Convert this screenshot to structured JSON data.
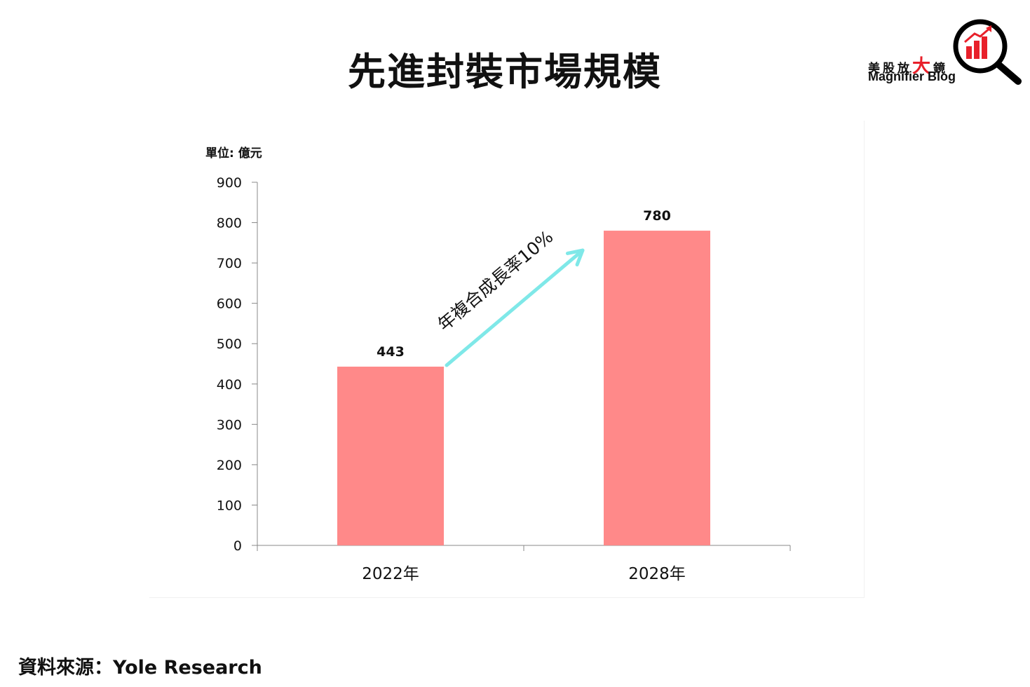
{
  "title": "先進封裝市場規模",
  "logo": {
    "chars": [
      "美",
      "股",
      "放",
      "大",
      "鏡"
    ],
    "subtitle": "Magnifier Blog",
    "icon": "magnifier-bar-chart-icon",
    "accent": "#e8202a"
  },
  "source": "資料來源：Yole Research",
  "chart_data": {
    "type": "bar",
    "unit_label": "單位: 億元",
    "categories": [
      "2022年",
      "2028年"
    ],
    "values": [
      443,
      780
    ],
    "data_labels": [
      "443",
      "780"
    ],
    "ylim": [
      0,
      900
    ],
    "yticks": [
      0,
      100,
      200,
      300,
      400,
      500,
      600,
      700,
      800,
      900
    ],
    "grid": false,
    "bar_color": "#ff8989",
    "annotation": {
      "text": "年複合成長率10%",
      "color": "#7fe8e8"
    }
  }
}
